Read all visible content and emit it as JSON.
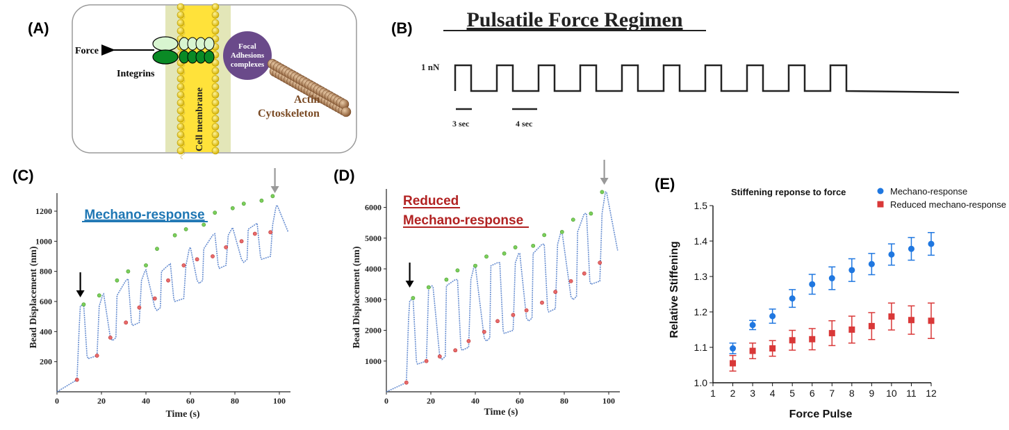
{
  "panels": {
    "A": {
      "letter": "(A)",
      "force_label": "Force",
      "integrins_label": "Integrins",
      "membrane_label": "Cell membrane",
      "focal_label_lines": [
        "Focal",
        "Adhesions",
        "complexes"
      ],
      "actin_label_lines": [
        "Actin",
        "Cytoskeleton"
      ]
    },
    "B": {
      "letter": "(B)",
      "title": "Pulsatile Force Regimen",
      "amplitude_label": "1 nN",
      "scale_on": "3 sec",
      "scale_off": "4 sec",
      "pulse_count": 10
    },
    "C": {
      "letter": "(C)",
      "annotation": "Mechano-response",
      "annotation_color": "#1f77b4",
      "xlabel": "Time (s)",
      "ylabel": "Bead Displacement (nm)"
    },
    "D": {
      "letter": "(D)",
      "annotation_lines": [
        "Reduced",
        "Mechano-response"
      ],
      "annotation_color": "#b22222",
      "xlabel": "Time (s)",
      "ylabel": "Bead Displacement (nm)"
    },
    "E": {
      "letter": "(E)",
      "title": "Stiffening reponse to force",
      "xlabel": "Force Pulse",
      "ylabel": "Relative Stiffening"
    }
  },
  "chart_data": [
    {
      "id": "C",
      "type": "line",
      "xlabel": "Time (s)",
      "ylabel": "Bead Displacement (nm)",
      "xlim": [
        0,
        105
      ],
      "ylim": [
        0,
        1320
      ],
      "xticks": [
        0,
        20,
        40,
        60,
        80,
        100
      ],
      "yticks": [
        200,
        400,
        600,
        800,
        1000,
        1200
      ],
      "x": [
        0,
        9,
        10,
        10.5,
        12,
        13.5,
        14,
        18,
        19,
        20.5,
        21,
        24,
        25,
        26.5,
        27,
        31,
        32,
        33.5,
        34,
        37,
        38,
        39.5,
        40,
        44,
        45,
        46.5,
        47,
        50,
        51,
        52.5,
        53,
        57,
        58,
        59.5,
        60,
        63,
        64,
        65.5,
        66,
        70,
        71,
        72.5,
        73,
        76,
        77,
        78.5,
        79,
        83,
        84,
        85.5,
        86,
        89,
        90,
        91.5,
        92,
        96,
        97,
        98.5,
        99,
        104
      ],
      "y": [
        0,
        80,
        430,
        570,
        580,
        240,
        220,
        240,
        570,
        640,
        650,
        360,
        340,
        360,
        640,
        740,
        750,
        460,
        440,
        460,
        740,
        800,
        810,
        560,
        540,
        560,
        800,
        840,
        850,
        620,
        600,
        620,
        840,
        950,
        960,
        740,
        720,
        740,
        950,
        1040,
        1050,
        840,
        820,
        840,
        1040,
        1080,
        1090,
        880,
        860,
        880,
        1080,
        1110,
        1120,
        900,
        880,
        900,
        1110,
        1230,
        1240,
        1060
      ],
      "peak_markers": [
        [
          12,
          580
        ],
        [
          19,
          640
        ],
        [
          27,
          740
        ],
        [
          32,
          800
        ],
        [
          40,
          840
        ],
        [
          45,
          950
        ],
        [
          53,
          1040
        ],
        [
          58,
          1080
        ],
        [
          66,
          1110
        ],
        [
          71,
          1190
        ],
        [
          79,
          1220
        ],
        [
          84,
          1250
        ],
        [
          92,
          1270
        ],
        [
          97,
          1300
        ]
      ],
      "trough_markers": [
        [
          9,
          80
        ],
        [
          18,
          240
        ],
        [
          24,
          360
        ],
        [
          31,
          460
        ],
        [
          37,
          560
        ],
        [
          44,
          620
        ],
        [
          50,
          740
        ],
        [
          57,
          840
        ],
        [
          63,
          880
        ],
        [
          70,
          900
        ],
        [
          76,
          960
        ],
        [
          83,
          1000
        ],
        [
          89,
          1050
        ],
        [
          96,
          1060
        ]
      ],
      "arrows": [
        {
          "x": 10.5,
          "color": "#000000"
        },
        {
          "x": 98,
          "color": "#999999"
        }
      ]
    },
    {
      "id": "D",
      "type": "line",
      "xlabel": "Time (s)",
      "ylabel": "Bead Displacement (nm)",
      "xlim": [
        0,
        105
      ],
      "ylim": [
        0,
        6600
      ],
      "xticks": [
        0,
        20,
        40,
        60,
        80,
        100
      ],
      "yticks": [
        1000,
        2000,
        3000,
        4000,
        5000,
        6000
      ],
      "x": [
        0,
        9,
        10,
        10.5,
        12,
        13.5,
        14,
        18,
        19,
        20.5,
        21,
        24,
        25,
        26.5,
        27,
        31,
        32,
        33.5,
        34,
        37,
        38,
        39.5,
        40,
        44,
        45,
        46.5,
        47,
        50,
        51,
        52.5,
        53,
        57,
        58,
        59.5,
        60,
        63,
        64,
        65.5,
        66,
        70,
        71,
        72.5,
        73,
        76,
        77,
        78.5,
        79,
        83,
        84,
        85.5,
        86,
        89,
        90,
        91.5,
        92,
        96,
        97,
        98.5,
        99,
        104
      ],
      "y": [
        0,
        300,
        2400,
        2950,
        3050,
        1000,
        900,
        1000,
        3350,
        3450,
        3400,
        1150,
        1050,
        1150,
        3450,
        3650,
        3650,
        1450,
        1350,
        1450,
        3650,
        4100,
        4100,
        1750,
        1650,
        1750,
        4100,
        4200,
        4200,
        2000,
        1900,
        2000,
        4200,
        4500,
        4500,
        2400,
        2300,
        2400,
        4500,
        4800,
        4800,
        2700,
        2600,
        2700,
        4800,
        5200,
        5200,
        3100,
        3000,
        3100,
        5200,
        5800,
        5800,
        3600,
        3500,
        3600,
        5800,
        6500,
        6500,
        4600
      ],
      "peak_markers": [
        [
          12,
          3050
        ],
        [
          19,
          3400
        ],
        [
          27,
          3650
        ],
        [
          32,
          3950
        ],
        [
          40,
          4100
        ],
        [
          45,
          4400
        ],
        [
          53,
          4500
        ],
        [
          58,
          4700
        ],
        [
          66,
          4750
        ],
        [
          71,
          5100
        ],
        [
          79,
          5200
        ],
        [
          84,
          5600
        ],
        [
          92,
          5800
        ],
        [
          97,
          6500
        ]
      ],
      "trough_markers": [
        [
          9,
          300
        ],
        [
          18,
          1000
        ],
        [
          24,
          1150
        ],
        [
          31,
          1350
        ],
        [
          37,
          1650
        ],
        [
          44,
          1950
        ],
        [
          50,
          2300
        ],
        [
          57,
          2500
        ],
        [
          63,
          2650
        ],
        [
          70,
          2900
        ],
        [
          76,
          3250
        ],
        [
          83,
          3600
        ],
        [
          89,
          3850
        ],
        [
          96,
          4200
        ]
      ],
      "arrows": [
        {
          "x": 10.5,
          "color": "#000000"
        },
        {
          "x": 98,
          "color": "#999999"
        }
      ]
    },
    {
      "id": "E",
      "type": "scatter",
      "title": "Stiffening reponse to force",
      "xlabel": "Force Pulse",
      "ylabel": "Relative Stiffening",
      "xlim": [
        1,
        12
      ],
      "ylim": [
        1.0,
        1.5
      ],
      "xticks": [
        1,
        2,
        3,
        4,
        5,
        6,
        7,
        8,
        9,
        10,
        11,
        12
      ],
      "yticks": [
        1.0,
        1.1,
        1.2,
        1.3,
        1.4,
        1.5
      ],
      "x": [
        2,
        3,
        4,
        5,
        6,
        7,
        8,
        9,
        10,
        11,
        12
      ],
      "legend_position": "top-right",
      "series": [
        {
          "name": "Mechano-response",
          "color": "#1f77e0",
          "marker": "circle",
          "values": [
            1.097,
            1.163,
            1.188,
            1.238,
            1.278,
            1.295,
            1.318,
            1.335,
            1.362,
            1.378,
            1.392
          ],
          "errors": [
            0.015,
            0.013,
            0.02,
            0.025,
            0.028,
            0.032,
            0.032,
            0.03,
            0.03,
            0.032,
            0.032
          ]
        },
        {
          "name": "Reduced mechano-response",
          "color": "#d93838",
          "marker": "square",
          "values": [
            1.055,
            1.09,
            1.097,
            1.12,
            1.123,
            1.14,
            1.15,
            1.16,
            1.187,
            1.177,
            1.175
          ],
          "errors": [
            0.022,
            0.022,
            0.022,
            0.028,
            0.03,
            0.035,
            0.038,
            0.038,
            0.038,
            0.04,
            0.05
          ]
        }
      ]
    }
  ]
}
